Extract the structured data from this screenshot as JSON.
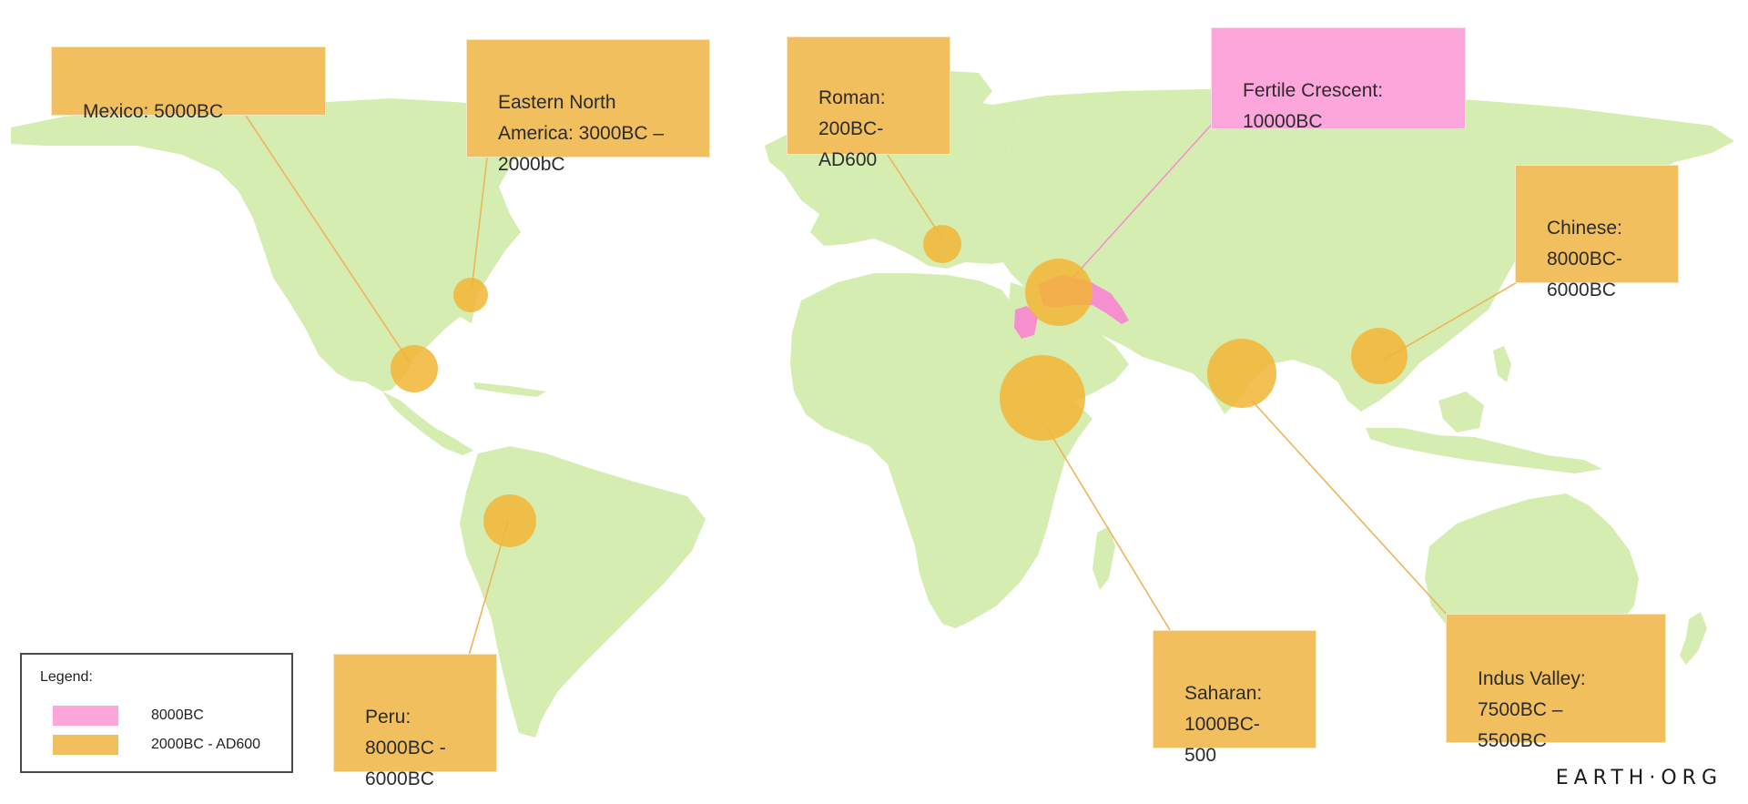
{
  "colors": {
    "land": "#d6edb2",
    "circle": "#f2b535",
    "pink_region": "#f58fd0",
    "leader_orange": "#efb45a",
    "leader_pink": "#f58fd0",
    "box_orange": "#f1bf5e",
    "box_pink": "#fda6dc"
  },
  "labels": {
    "mexico": "Mexico: 5000BC",
    "eastern_na": "Eastern North\nAmerica: 3000BC –\n2000bC",
    "roman": "Roman:\n200BC-\nAD600",
    "fertile_crescent": "Fertile Crescent:\n10000BC",
    "chinese": "Chinese:\n8000BC-\n6000BC",
    "peru": "Peru:\n8000BC -\n6000BC",
    "saharan": "Saharan:\n1000BC-\n500",
    "indus": "Indus Valley:\n7500BC –\n5500BC"
  },
  "legend": {
    "title": "Legend:",
    "items": [
      {
        "label": "8000BC",
        "color": "#fda6dc"
      },
      {
        "label": "2000BC - AD600",
        "color": "#f1bf5e"
      }
    ]
  },
  "brand": "EARTH·ORG"
}
